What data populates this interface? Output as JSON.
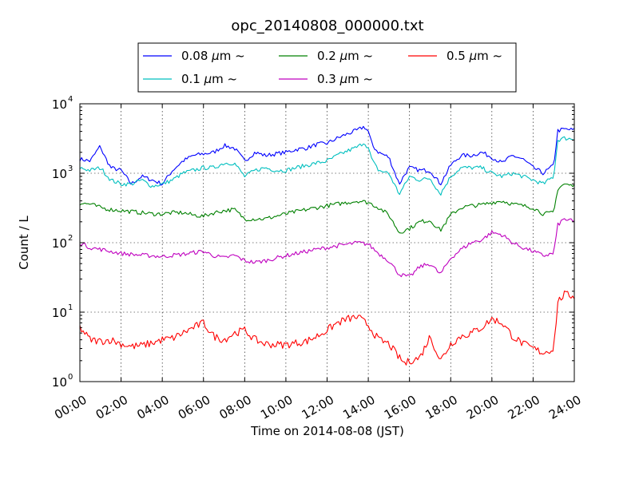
{
  "chart_data": {
    "type": "line",
    "title": "opc_20140808_000000.txt",
    "xlabel": "Time on 2014-08-08 (JST)",
    "ylabel": "Count / L",
    "x_axis_unit": "hour",
    "xlim": [
      0,
      24
    ],
    "ylim": [
      1,
      10000
    ],
    "yscale": "log",
    "grid": true,
    "legend_position": "top-center",
    "x_ticks": [
      {
        "value": 0,
        "label": "00:00"
      },
      {
        "value": 2,
        "label": "02:00"
      },
      {
        "value": 4,
        "label": "04:00"
      },
      {
        "value": 6,
        "label": "06:00"
      },
      {
        "value": 8,
        "label": "08:00"
      },
      {
        "value": 10,
        "label": "10:00"
      },
      {
        "value": 12,
        "label": "12:00"
      },
      {
        "value": 14,
        "label": "14:00"
      },
      {
        "value": 16,
        "label": "16:00"
      },
      {
        "value": 18,
        "label": "18:00"
      },
      {
        "value": 20,
        "label": "20:00"
      },
      {
        "value": 22,
        "label": "22:00"
      },
      {
        "value": 24,
        "label": "24:00"
      }
    ],
    "y_ticks": [
      {
        "value": 1,
        "base": "10",
        "exp": "0"
      },
      {
        "value": 10,
        "base": "10",
        "exp": "1"
      },
      {
        "value": 100,
        "base": "10",
        "exp": "2"
      },
      {
        "value": 1000,
        "base": "10",
        "exp": "3"
      },
      {
        "value": 10000,
        "base": "10",
        "exp": "4"
      }
    ],
    "series": [
      {
        "name": "0.08 μm ~",
        "name_size": "0.08",
        "name_unit": "μm",
        "name_suffix": "~",
        "color": "#0000ff",
        "x": [
          0,
          0.5,
          1,
          1.1,
          1.5,
          2,
          2.5,
          3,
          3.5,
          4,
          4.5,
          5,
          5.5,
          6,
          6.5,
          7,
          7.5,
          8,
          8.5,
          9,
          9.5,
          10,
          10.5,
          11,
          11.5,
          12,
          12.5,
          13,
          13.5,
          13.8,
          14,
          14.2,
          14.5,
          15,
          15.5,
          15.8,
          16,
          16.5,
          17,
          17.5,
          18,
          18.5,
          19,
          19.5,
          20,
          20.5,
          21,
          21.5,
          22,
          22.5,
          23,
          23.2,
          23.5,
          24
        ],
        "y": [
          1600,
          1500,
          2500,
          2000,
          1200,
          1100,
          700,
          900,
          800,
          700,
          1100,
          1500,
          1800,
          1900,
          2000,
          2500,
          2300,
          1500,
          2000,
          1800,
          1900,
          2000,
          2200,
          2300,
          2600,
          2700,
          3200,
          3700,
          4200,
          4700,
          4000,
          2500,
          2000,
          1700,
          700,
          1000,
          1200,
          1100,
          1100,
          700,
          1300,
          1800,
          1800,
          2000,
          1700,
          1400,
          1800,
          1600,
          1200,
          1000,
          1300,
          4100,
          4300,
          4200
        ]
      },
      {
        "name": "0.1 μm ~",
        "name_size": "0.1",
        "name_unit": "μm",
        "name_suffix": "~",
        "color": "#00bfbf",
        "x": [
          0,
          0.5,
          1,
          1.5,
          2,
          2.5,
          3,
          3.5,
          4,
          4.5,
          5,
          5.5,
          6,
          6.5,
          7,
          7.5,
          8,
          8.5,
          9,
          9.5,
          10,
          10.5,
          11,
          11.5,
          12,
          12.5,
          13,
          13.5,
          13.8,
          14,
          14.2,
          14.5,
          15,
          15.5,
          15.8,
          16,
          16.5,
          17,
          17.5,
          18,
          18.5,
          19,
          19.5,
          20,
          20.5,
          21,
          21.5,
          22,
          22.5,
          23,
          23.2,
          23.5,
          24
        ],
        "y": [
          1200,
          1100,
          1200,
          800,
          700,
          700,
          800,
          650,
          700,
          800,
          1000,
          1100,
          1200,
          1200,
          1400,
          1400,
          900,
          1100,
          1200,
          1100,
          1100,
          1200,
          1300,
          1400,
          1500,
          1800,
          2100,
          2400,
          2800,
          2300,
          1500,
          1100,
          1000,
          500,
          700,
          900,
          800,
          850,
          500,
          900,
          1200,
          1200,
          1200,
          1000,
          900,
          1000,
          900,
          800,
          700,
          900,
          3000,
          3200,
          3100
        ]
      },
      {
        "name": "0.2 μm ~",
        "name_size": "0.2",
        "name_unit": "μm",
        "name_suffix": "~",
        "color": "#008000",
        "x": [
          0,
          0.5,
          1,
          1.5,
          2,
          2.5,
          3,
          3.5,
          4,
          4.5,
          5,
          5.5,
          6,
          6.5,
          7,
          7.5,
          8,
          8.5,
          9,
          9.5,
          10,
          10.5,
          11,
          11.5,
          12,
          12.5,
          13,
          13.5,
          14,
          14.5,
          15,
          15.5,
          16,
          16.5,
          17,
          17.5,
          18,
          18.5,
          19,
          19.5,
          20,
          20.5,
          21,
          21.5,
          22,
          22.5,
          23,
          23.2,
          23.5,
          24
        ],
        "y": [
          370,
          360,
          320,
          300,
          290,
          280,
          270,
          260,
          260,
          270,
          270,
          250,
          240,
          270,
          290,
          300,
          220,
          220,
          220,
          240,
          260,
          280,
          300,
          320,
          340,
          360,
          380,
          400,
          380,
          320,
          250,
          140,
          160,
          200,
          210,
          150,
          250,
          320,
          340,
          350,
          380,
          400,
          360,
          340,
          320,
          260,
          270,
          600,
          700,
          650
        ]
      },
      {
        "name": "0.3 μm ~",
        "name_size": "0.3",
        "name_unit": "μm",
        "name_suffix": "~",
        "color": "#bf00bf",
        "x": [
          0,
          0.5,
          1,
          1.5,
          2,
          2.5,
          3,
          3.5,
          4,
          4.5,
          5,
          5.5,
          6,
          6.5,
          7,
          7.5,
          8,
          8.5,
          9,
          9.5,
          10,
          10.5,
          11,
          11.5,
          12,
          12.5,
          13,
          13.5,
          14,
          14.5,
          15,
          15.5,
          16,
          16.5,
          17,
          17.5,
          18,
          18.5,
          19,
          19.5,
          20,
          20.5,
          21,
          21.5,
          22,
          22.5,
          23,
          23.2,
          23.5,
          24
        ],
        "y": [
          100,
          85,
          80,
          75,
          70,
          68,
          66,
          65,
          63,
          66,
          68,
          72,
          75,
          65,
          60,
          66,
          55,
          52,
          55,
          60,
          65,
          70,
          75,
          80,
          85,
          90,
          95,
          100,
          95,
          70,
          55,
          35,
          32,
          45,
          50,
          35,
          60,
          80,
          100,
          110,
          140,
          130,
          100,
          85,
          75,
          65,
          70,
          180,
          220,
          200
        ]
      },
      {
        "name": "0.5 μm ~",
        "name_size": "0.5",
        "name_unit": "μm",
        "name_suffix": "~",
        "color": "#ff0000",
        "x": [
          0,
          0.5,
          1,
          1.5,
          2,
          2.5,
          3,
          3.5,
          4,
          4.5,
          5,
          5.5,
          6,
          6.5,
          7,
          7.5,
          8,
          8.5,
          9,
          9.5,
          10,
          10.5,
          11,
          11.5,
          12,
          12.5,
          13,
          13.5,
          14,
          14.5,
          15,
          15.5,
          15.8,
          16,
          16.5,
          17,
          17.5,
          18,
          18.5,
          19,
          19.5,
          20,
          20.5,
          21,
          21.5,
          22,
          22.5,
          23,
          23.2,
          23.5,
          24
        ],
        "y": [
          6,
          4,
          3.8,
          4,
          3.5,
          3.2,
          3.3,
          3.6,
          4,
          4.2,
          5,
          6,
          7,
          4.5,
          4,
          5,
          5.5,
          4,
          3.5,
          3.4,
          3.4,
          3.6,
          3.8,
          4.5,
          5.5,
          7,
          8,
          8.5,
          6.5,
          4,
          3.5,
          2.2,
          1.8,
          2,
          2.2,
          4.5,
          2,
          3.5,
          4.5,
          5,
          6,
          8,
          7,
          4.5,
          3.5,
          3,
          2.6,
          3,
          14,
          18,
          17
        ]
      }
    ]
  }
}
